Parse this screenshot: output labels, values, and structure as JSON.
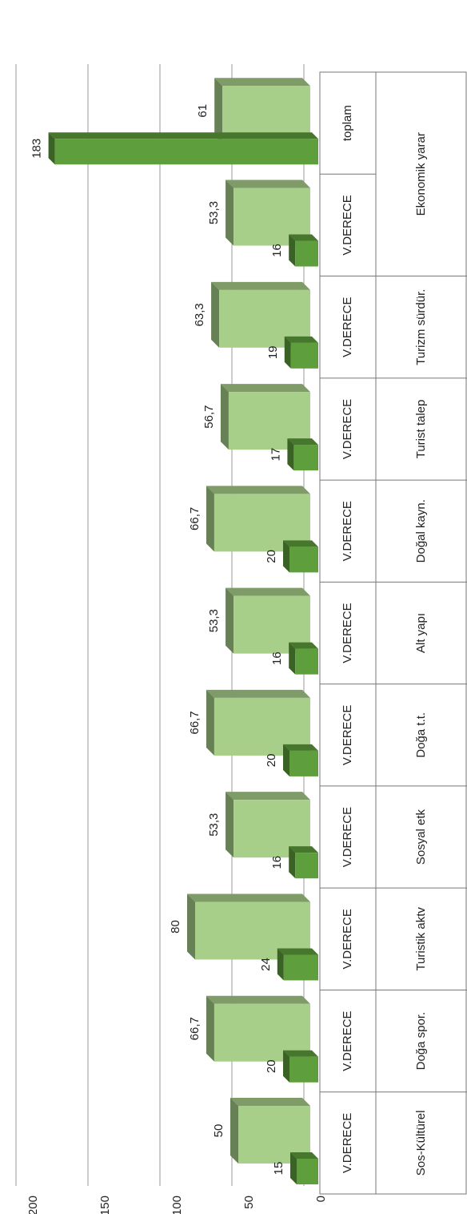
{
  "chart_data": {
    "type": "bar",
    "categories": [
      "V.DERECE",
      "V.DERECE",
      "V.DERECE",
      "V.DERECE",
      "V.DERECE",
      "V.DERECE",
      "V.DERECE",
      "V.DERECE",
      "V.DERECE",
      "V.DERECE",
      "toplam"
    ],
    "group_labels": [
      "Sos-Kültürel",
      "Doğa spor.",
      "Turistik aktv",
      "Sosyal etk",
      "Doğa t.t.",
      "Alt yapı",
      "Doğal kayn.",
      "Turist talep",
      "Turizm sürdür.",
      "Ekonomik yarar",
      null
    ],
    "series": [
      {
        "color": "#5f9e3c",
        "values": [
          15,
          20,
          24,
          16,
          20,
          16,
          20,
          17,
          19,
          16,
          183
        ]
      },
      {
        "color": "#a8cf8a",
        "values": [
          50,
          66.7,
          80,
          53.3,
          66.7,
          53.3,
          66.7,
          56.7,
          63.3,
          53.3,
          61
        ],
        "value_labels": [
          "50",
          "66,7",
          "80",
          "53,3",
          "66,7",
          "53,3",
          "66,7",
          "56,7",
          "63,3",
          "53,3",
          "61"
        ]
      }
    ],
    "ylim": [
      0,
      200
    ],
    "yticks": [
      0,
      50,
      100,
      150,
      200
    ],
    "grid": true
  }
}
